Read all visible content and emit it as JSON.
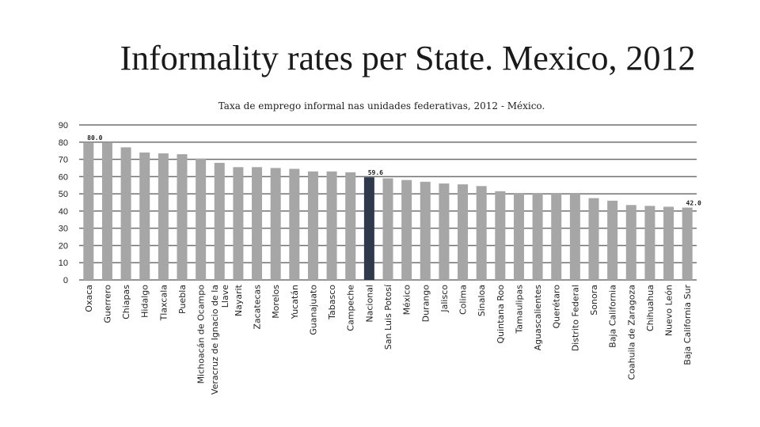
{
  "slide": {
    "title": "Informality rates per State. Mexico, 2012"
  },
  "chart_data": {
    "type": "bar",
    "title": "Taxa de emprego informal nas unidades federativas, 2012 - México.",
    "xlabel": "",
    "ylabel": "",
    "ylim": [
      0,
      90
    ],
    "yticks": [
      0,
      10,
      20,
      30,
      40,
      50,
      60,
      70,
      80,
      90
    ],
    "grid": true,
    "legend": "none",
    "categories": [
      "Oxaca",
      "Guerrero",
      "Chiapas",
      "Hidalgo",
      "Tlaxcala",
      "Puebla",
      [
        "Michoacán de Ocampo"
      ],
      [
        "Veracruz de Ignacio de la",
        "Llave"
      ],
      "Nayarit",
      "Zacatecas",
      "Morelos",
      "Yucatán",
      "Guanajuato",
      "Tabasco",
      "Campeche",
      "Nacional",
      "San Luis Potosí",
      "México",
      "Durango",
      "Jalisco",
      "Colima",
      "Sinaloa",
      "Quintana Roo",
      "Tamaulipas",
      "Aguascalientes",
      "Querétaro",
      "Distrito Federal",
      "Sonora",
      "Baja California",
      "Coahuila de Zaragoza",
      "Chihuahua",
      "Nuevo León",
      "Baja California Sur"
    ],
    "values": [
      80.0,
      80.0,
      77.0,
      74.0,
      73.5,
      73.0,
      70.5,
      68.0,
      65.5,
      65.5,
      65.0,
      64.5,
      63.0,
      63.0,
      62.5,
      59.6,
      59.0,
      58.0,
      57.0,
      56.0,
      55.5,
      54.5,
      51.5,
      50.5,
      50.5,
      50.5,
      50.5,
      47.5,
      46.0,
      43.5,
      43.0,
      42.5,
      42.0
    ],
    "data_labels": [
      {
        "index": 0,
        "text": "80.0"
      },
      {
        "index": 15,
        "text": "59.6"
      },
      {
        "index": 32,
        "text": "42.0"
      }
    ],
    "colors": {
      "bar": "#a6a6a6",
      "highlight": "#2e3a4b",
      "highlight_index": 15,
      "grid": "#707070"
    }
  }
}
